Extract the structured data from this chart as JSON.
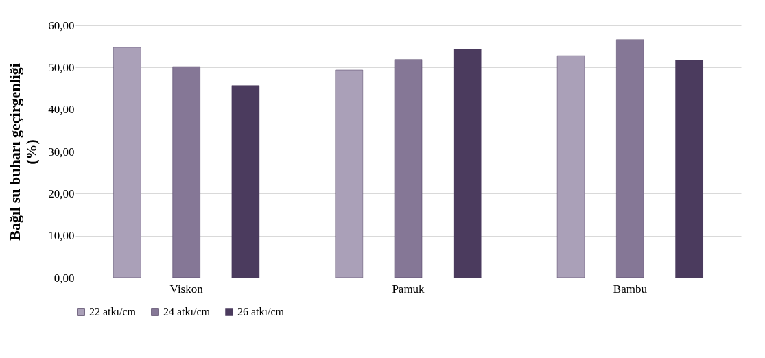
{
  "chart_data": {
    "type": "bar",
    "ylabel": "Bağıl su buharı geçirgenliği (%)",
    "categories": [
      "Viskon",
      "Pamuk",
      "Bambu"
    ],
    "series": [
      {
        "name": "22 atkı/cm",
        "color": "#aaa0b8",
        "values": [
          54.8,
          49.4,
          52.8
        ]
      },
      {
        "name": "24 atkı/cm",
        "color": "#857796",
        "values": [
          50.2,
          51.9,
          56.6
        ]
      },
      {
        "name": "26 atkı/cm",
        "color": "#4b3b5e",
        "values": [
          45.7,
          54.3,
          51.7
        ]
      }
    ],
    "ylim": [
      0,
      60
    ],
    "yticks": [
      {
        "value": 0,
        "label": "0,00"
      },
      {
        "value": 10,
        "label": "10,00"
      },
      {
        "value": 20,
        "label": "20,00"
      },
      {
        "value": 30,
        "label": "30,00"
      },
      {
        "value": 40,
        "label": "40,00"
      },
      {
        "value": 50,
        "label": "50,00"
      },
      {
        "value": 60,
        "label": "60,00"
      }
    ],
    "grid": "y",
    "legend": "bottom"
  }
}
